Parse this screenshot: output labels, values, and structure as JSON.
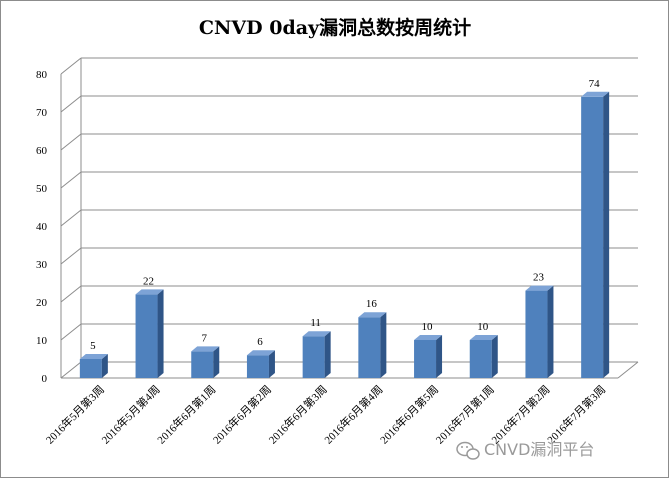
{
  "chart_data": {
    "type": "bar",
    "title": "CNVD 0day漏洞总数按周统计",
    "categories": [
      "2016年5月第3周",
      "2016年5月第4周",
      "2016年6月第1周",
      "2016年6月第2周",
      "2016年6月第3周",
      "2016年6月第4周",
      "2016年6月第5周",
      "2016年7月第1周",
      "2016年7月第2周",
      "2016年7月第3周"
    ],
    "values": [
      5,
      22,
      7,
      6,
      11,
      16,
      10,
      10,
      23,
      74
    ],
    "data_labels": [
      "5",
      "22",
      "7",
      "6",
      "11",
      "16",
      "10",
      "10",
      "23",
      "74"
    ],
    "yticks": [
      "0",
      "10",
      "20",
      "30",
      "40",
      "50",
      "60",
      "70",
      "80"
    ],
    "ylim": [
      0,
      80
    ],
    "grid": true,
    "style": "3d",
    "bar_color": "#4f81bd",
    "bar_side_color": "#2f5587",
    "bar_top_color": "#7da3d6"
  },
  "watermark": {
    "text": "CNVD漏洞平台",
    "icon": "wechat-icon"
  }
}
